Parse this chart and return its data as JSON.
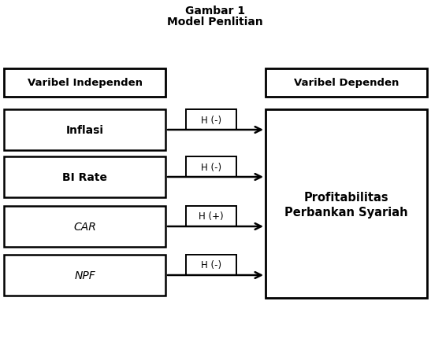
{
  "title_line1": "Gambar 1",
  "title_line2": "Model Penlitian",
  "left_header": "Varibel Independen",
  "right_header": "Varibel Dependen",
  "independent_vars": [
    "Inflasi",
    "BI Rate",
    "CAR",
    "NPF"
  ],
  "italic_vars": [
    "CAR",
    "NPF"
  ],
  "dependent_var_line1": "Profitabilitas",
  "dependent_var_line2": "Perbankan Syariah",
  "hypotheses": [
    "H (-)",
    "H (-)",
    "H (+)",
    "H (-)"
  ],
  "box_edge_color": "#000000",
  "box_face_color": "#ffffff",
  "arrow_color": "#000000",
  "title_color": "#000000",
  "bg_color": "#ffffff",
  "fig_width": 5.47,
  "fig_height": 4.31,
  "dpi": 100
}
